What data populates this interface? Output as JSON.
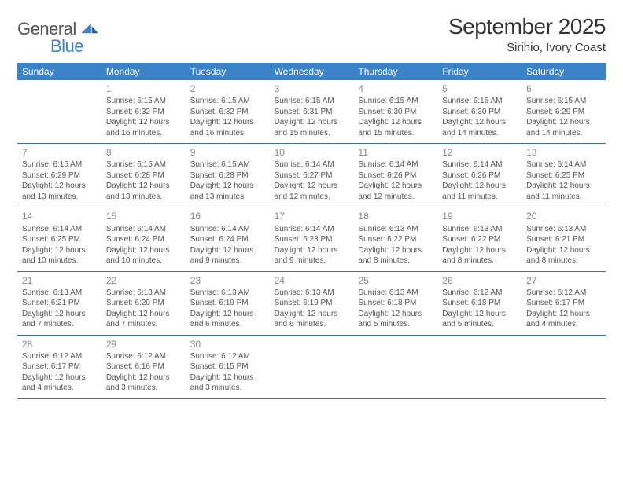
{
  "logo": {
    "word1": "General",
    "word2": "Blue"
  },
  "title": "September 2025",
  "location": "Sirihio, Ivory Coast",
  "header_bg": "#3b82c7",
  "weekdays": [
    "Sunday",
    "Monday",
    "Tuesday",
    "Wednesday",
    "Thursday",
    "Friday",
    "Saturday"
  ],
  "weeks": [
    [
      null,
      {
        "n": "1",
        "sr": "6:15 AM",
        "ss": "6:32 PM",
        "dl": "12 hours and 16 minutes."
      },
      {
        "n": "2",
        "sr": "6:15 AM",
        "ss": "6:32 PM",
        "dl": "12 hours and 16 minutes."
      },
      {
        "n": "3",
        "sr": "6:15 AM",
        "ss": "6:31 PM",
        "dl": "12 hours and 15 minutes."
      },
      {
        "n": "4",
        "sr": "6:15 AM",
        "ss": "6:30 PM",
        "dl": "12 hours and 15 minutes."
      },
      {
        "n": "5",
        "sr": "6:15 AM",
        "ss": "6:30 PM",
        "dl": "12 hours and 14 minutes."
      },
      {
        "n": "6",
        "sr": "6:15 AM",
        "ss": "6:29 PM",
        "dl": "12 hours and 14 minutes."
      }
    ],
    [
      {
        "n": "7",
        "sr": "6:15 AM",
        "ss": "6:29 PM",
        "dl": "12 hours and 13 minutes."
      },
      {
        "n": "8",
        "sr": "6:15 AM",
        "ss": "6:28 PM",
        "dl": "12 hours and 13 minutes."
      },
      {
        "n": "9",
        "sr": "6:15 AM",
        "ss": "6:28 PM",
        "dl": "12 hours and 13 minutes."
      },
      {
        "n": "10",
        "sr": "6:14 AM",
        "ss": "6:27 PM",
        "dl": "12 hours and 12 minutes."
      },
      {
        "n": "11",
        "sr": "6:14 AM",
        "ss": "6:26 PM",
        "dl": "12 hours and 12 minutes."
      },
      {
        "n": "12",
        "sr": "6:14 AM",
        "ss": "6:26 PM",
        "dl": "12 hours and 11 minutes."
      },
      {
        "n": "13",
        "sr": "6:14 AM",
        "ss": "6:25 PM",
        "dl": "12 hours and 11 minutes."
      }
    ],
    [
      {
        "n": "14",
        "sr": "6:14 AM",
        "ss": "6:25 PM",
        "dl": "12 hours and 10 minutes."
      },
      {
        "n": "15",
        "sr": "6:14 AM",
        "ss": "6:24 PM",
        "dl": "12 hours and 10 minutes."
      },
      {
        "n": "16",
        "sr": "6:14 AM",
        "ss": "6:24 PM",
        "dl": "12 hours and 9 minutes."
      },
      {
        "n": "17",
        "sr": "6:14 AM",
        "ss": "6:23 PM",
        "dl": "12 hours and 9 minutes."
      },
      {
        "n": "18",
        "sr": "6:13 AM",
        "ss": "6:22 PM",
        "dl": "12 hours and 8 minutes."
      },
      {
        "n": "19",
        "sr": "6:13 AM",
        "ss": "6:22 PM",
        "dl": "12 hours and 8 minutes."
      },
      {
        "n": "20",
        "sr": "6:13 AM",
        "ss": "6:21 PM",
        "dl": "12 hours and 8 minutes."
      }
    ],
    [
      {
        "n": "21",
        "sr": "6:13 AM",
        "ss": "6:21 PM",
        "dl": "12 hours and 7 minutes."
      },
      {
        "n": "22",
        "sr": "6:13 AM",
        "ss": "6:20 PM",
        "dl": "12 hours and 7 minutes."
      },
      {
        "n": "23",
        "sr": "6:13 AM",
        "ss": "6:19 PM",
        "dl": "12 hours and 6 minutes."
      },
      {
        "n": "24",
        "sr": "6:13 AM",
        "ss": "6:19 PM",
        "dl": "12 hours and 6 minutes."
      },
      {
        "n": "25",
        "sr": "6:13 AM",
        "ss": "6:18 PM",
        "dl": "12 hours and 5 minutes."
      },
      {
        "n": "26",
        "sr": "6:12 AM",
        "ss": "6:18 PM",
        "dl": "12 hours and 5 minutes."
      },
      {
        "n": "27",
        "sr": "6:12 AM",
        "ss": "6:17 PM",
        "dl": "12 hours and 4 minutes."
      }
    ],
    [
      {
        "n": "28",
        "sr": "6:12 AM",
        "ss": "6:17 PM",
        "dl": "12 hours and 4 minutes."
      },
      {
        "n": "29",
        "sr": "6:12 AM",
        "ss": "6:16 PM",
        "dl": "12 hours and 3 minutes."
      },
      {
        "n": "30",
        "sr": "6:12 AM",
        "ss": "6:15 PM",
        "dl": "12 hours and 3 minutes."
      },
      null,
      null,
      null,
      null
    ]
  ],
  "labels": {
    "sunrise": "Sunrise:",
    "sunset": "Sunset:",
    "daylight": "Daylight:"
  },
  "style": {
    "page_bg": "#ffffff",
    "row_border": "#3b6ea5",
    "text_color": "#555",
    "daynum_color": "#888",
    "title_fontsize": 28,
    "location_fontsize": 15,
    "weekday_fontsize": 12,
    "body_fontsize": 10
  }
}
